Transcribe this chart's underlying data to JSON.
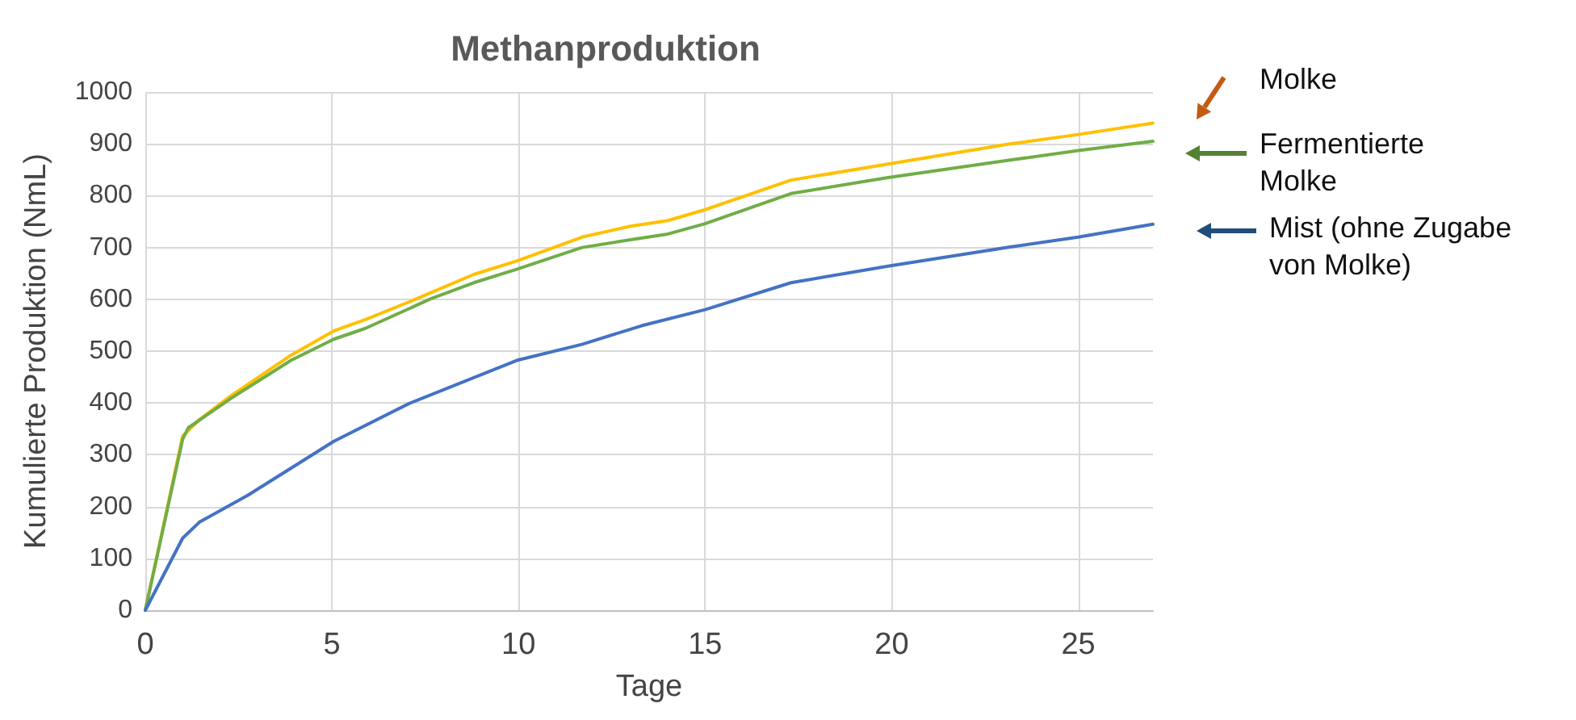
{
  "chart_data": {
    "type": "line",
    "title": "Methanproduktion",
    "xlabel": "Tage",
    "ylabel": "Kumulierte Produktion (NmL)",
    "xlim": [
      0,
      27
    ],
    "xticks": [
      0,
      5,
      10,
      15,
      20,
      25
    ],
    "ylim": [
      0,
      1000
    ],
    "yticks": [
      0,
      100,
      200,
      300,
      400,
      500,
      600,
      700,
      800,
      900,
      1000
    ],
    "grid": true,
    "legend": false,
    "marker": "none",
    "line_style": "solid",
    "series": [
      {
        "name": "Molke",
        "color": "#ffc000",
        "x": [
          0,
          1,
          1.45,
          2.3,
          3.9,
          5.05,
          5.9,
          7.07,
          8.8,
          9.95,
          11.7,
          13,
          14,
          15,
          17.3,
          19.9,
          23.1,
          25,
          27
        ],
        "values": [
          0,
          336,
          368,
          414,
          492,
          539,
          561,
          595,
          648,
          674,
          720,
          741,
          752,
          773,
          830,
          861,
          899,
          918,
          940
        ]
      },
      {
        "name": "Fermentierte Molke",
        "color": "#70ad47",
        "x": [
          0,
          1,
          1.15,
          2.3,
          3.9,
          5.05,
          5.9,
          7.65,
          8.8,
          9.95,
          11.7,
          13,
          14,
          15,
          17.3,
          19.9,
          23.1,
          25,
          27
        ],
        "values": [
          0,
          330,
          352,
          409,
          482,
          523,
          544,
          601,
          632,
          658,
          700,
          715,
          726,
          746,
          804,
          835,
          868,
          887,
          905
        ]
      },
      {
        "name": "Mist (ohne Zugabe von Molke)",
        "color": "#4472c4",
        "x": [
          0,
          1,
          1.45,
          2.75,
          5.05,
          7.07,
          9.95,
          11.7,
          13.3,
          15,
          17.3,
          19.9,
          23.1,
          25,
          27
        ],
        "values": [
          0,
          139,
          170,
          222,
          326,
          399,
          482,
          513,
          549,
          580,
          632,
          664,
          700,
          720,
          745
        ]
      }
    ]
  }
}
